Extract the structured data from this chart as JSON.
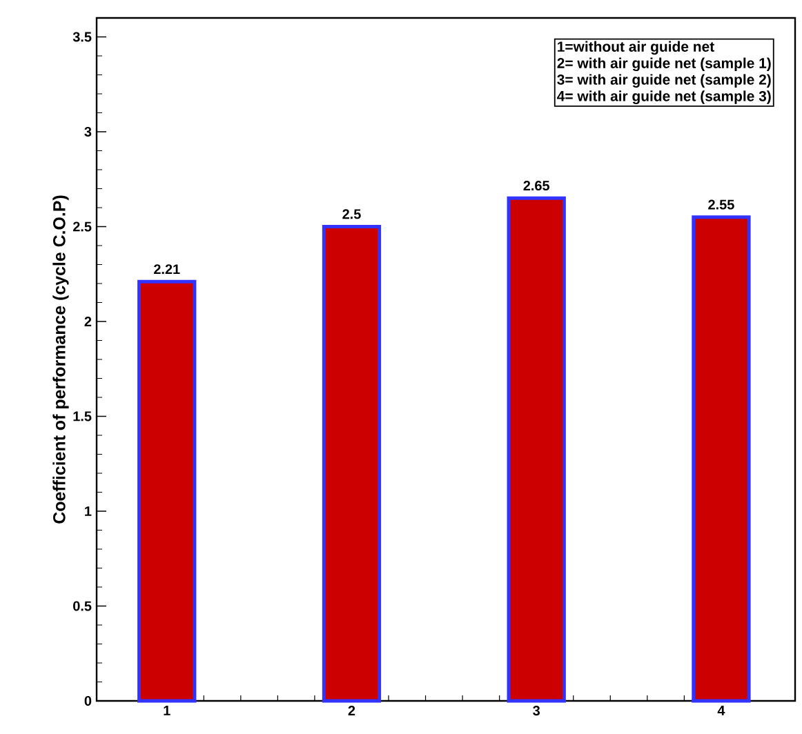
{
  "chart_data": {
    "type": "bar",
    "ylabel": "Coefficient of performance (cycle  C.O.P)",
    "x": [
      1,
      2,
      3,
      4
    ],
    "values": [
      2.21,
      2.5,
      2.65,
      2.55
    ],
    "color": "#cc0000",
    "xlim": [
      0.62,
      4.4
    ],
    "xticks": [
      1,
      2,
      3,
      4
    ],
    "ylim": [
      0,
      3.6
    ],
    "yticks": [
      0,
      0.5,
      1,
      1.5,
      2,
      2.5,
      3,
      3.5
    ],
    "data_labels": true,
    "annotations": [
      "1=without air guide net",
      "2= with air guide net (sample 1)",
      "3= with air guide net (sample 2)",
      "4= with air guide net (sample 3)"
    ]
  }
}
